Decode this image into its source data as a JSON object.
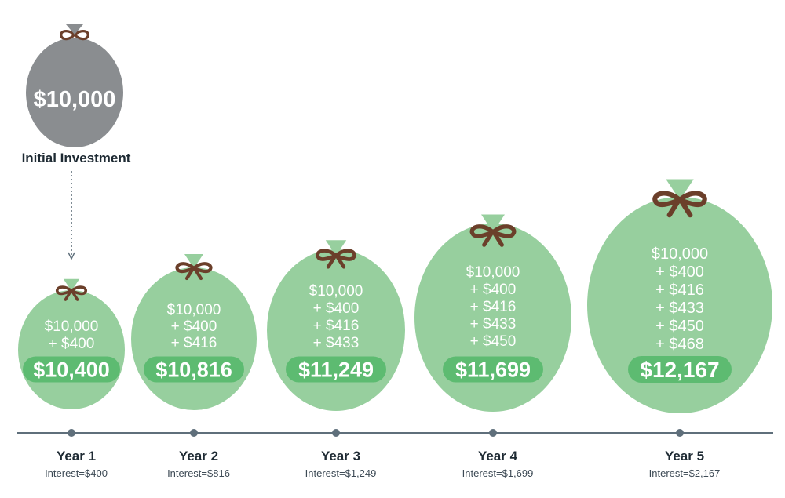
{
  "colors": {
    "bag_green": "#97cf9e",
    "bag_gray": "#8a8d90",
    "pill_green": "#5dbb71",
    "tie_brown": "#6b3f2a",
    "timeline": "#5f6f7b",
    "label_dark": "#1e2a33",
    "sublabel": "#3d4a55",
    "bag_text": "#ffffff"
  },
  "initial": {
    "amount": "$10,000",
    "label": "Initial Investment"
  },
  "years": [
    {
      "label": "Year 1",
      "interest": "Interest=$400",
      "lines": [
        "$10,000",
        "+ $400"
      ],
      "total": "$10,400"
    },
    {
      "label": "Year 2",
      "interest": "Interest=$816",
      "lines": [
        "$10,000",
        "+ $400",
        "+ $416"
      ],
      "total": "$10,816"
    },
    {
      "label": "Year 3",
      "interest": "Interest=$1,249",
      "lines": [
        "$10,000",
        "+ $400",
        "+ $416",
        "+ $433"
      ],
      "total": "$11,249"
    },
    {
      "label": "Year 4",
      "interest": "Interest=$1,699",
      "lines": [
        "$10,000",
        "+ $400",
        "+ $416",
        "+ $433",
        "+ $450"
      ],
      "total": "$11,699"
    },
    {
      "label": "Year 5",
      "interest": "Interest=$2,167",
      "lines": [
        "$10,000",
        "+ $400",
        "+ $416",
        "+ $433",
        "+ $450",
        "+ $468"
      ],
      "total": "$12,167"
    }
  ]
}
